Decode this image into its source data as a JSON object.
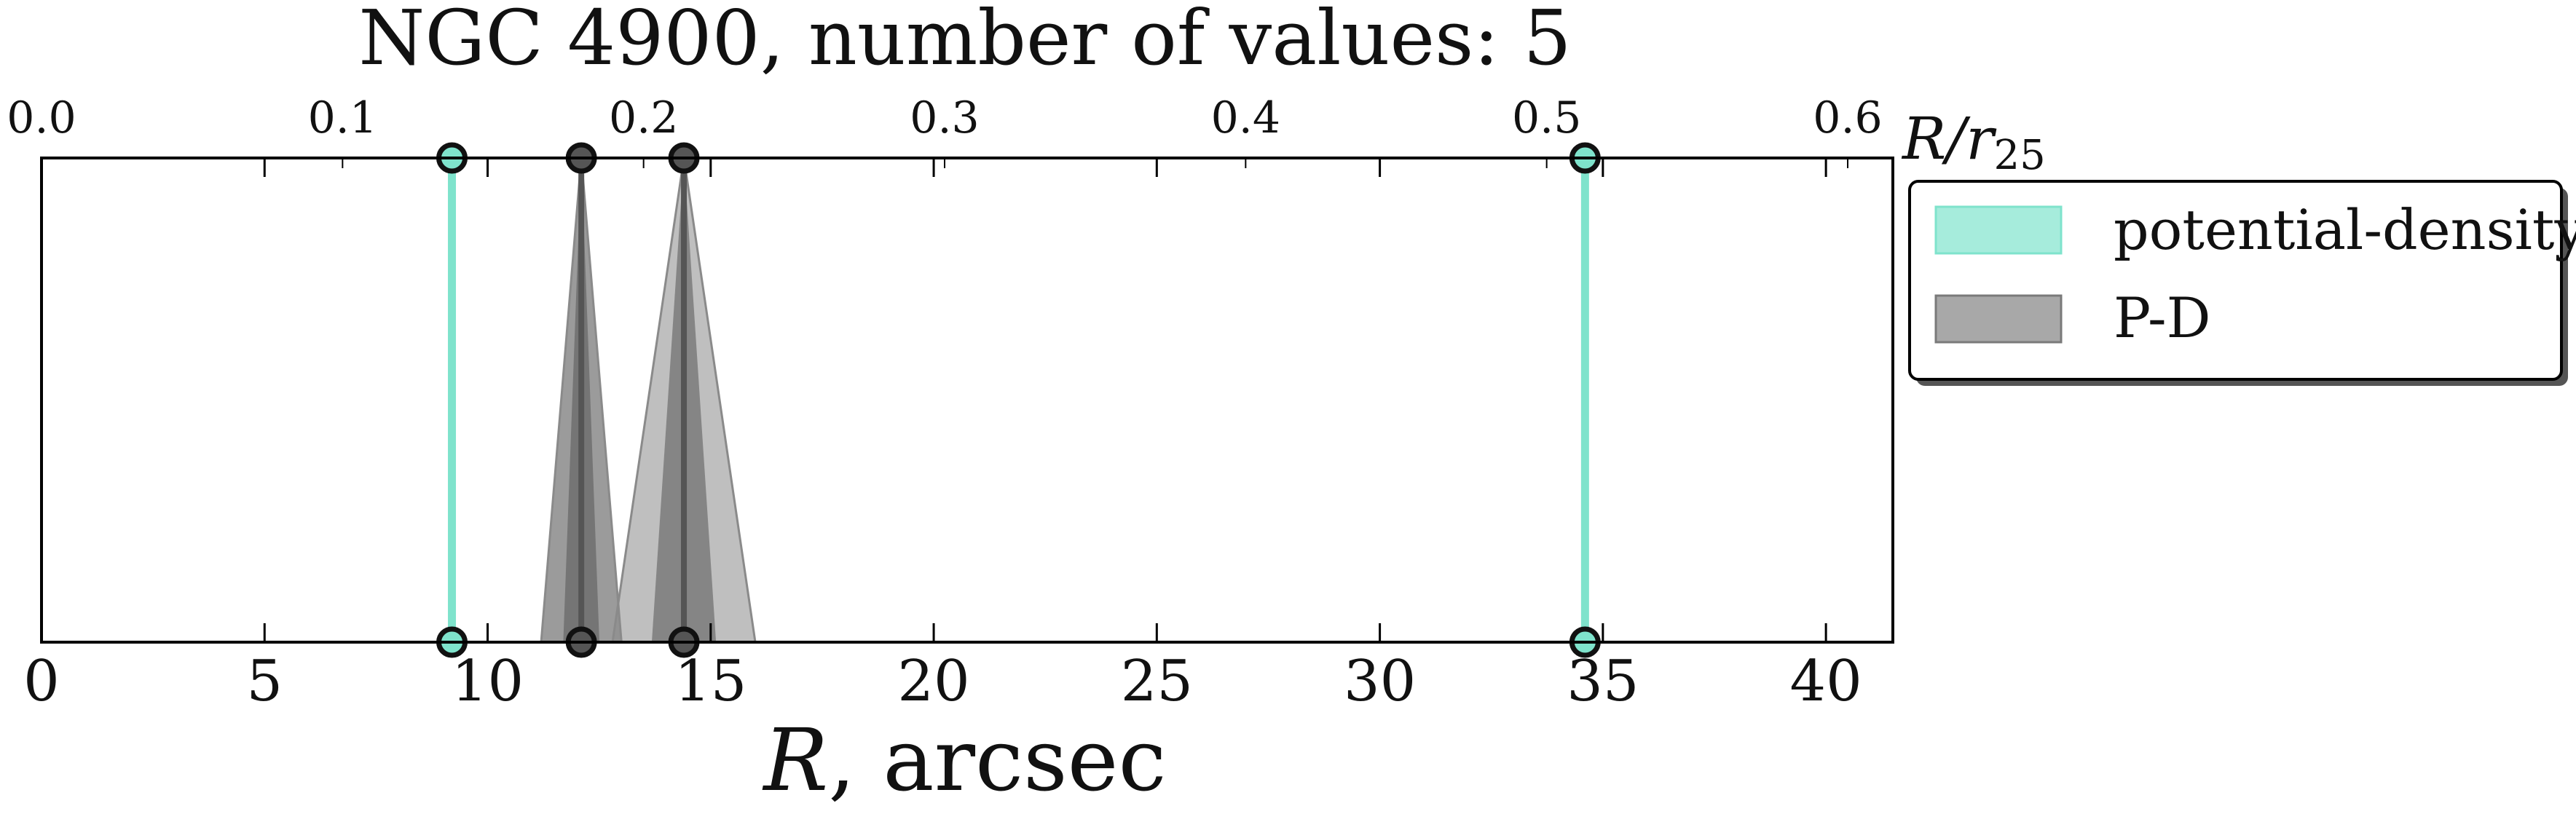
{
  "chart_data": {
    "type": "line",
    "title": "NGC 4900, number of values: 5",
    "xlabel": "R, arcsec",
    "xlabel_italic_part": "R",
    "xlabel_rest": ", arcsec",
    "top_axis_label": "R/r25",
    "top_axis_label_main": "R/r",
    "top_axis_label_sub": "25",
    "xlim": [
      0,
      41.5
    ],
    "x_ticks": [
      "0",
      "5",
      "10",
      "15",
      "20",
      "25",
      "30",
      "35",
      "40"
    ],
    "x_tick_values": [
      0,
      5,
      10,
      15,
      20,
      25,
      30,
      35,
      40
    ],
    "top_xlim": [
      0.0,
      0.615
    ],
    "top_ticks": [
      "0.0",
      "0.1",
      "0.2",
      "0.3",
      "0.4",
      "0.5",
      "0.6"
    ],
    "top_tick_values": [
      0.0,
      0.1,
      0.2,
      0.3,
      0.4,
      0.5,
      0.6
    ],
    "legend_position": "outside-right",
    "series": [
      {
        "name": "potential-density",
        "color": "#7fe3cc",
        "points": [
          {
            "r": 9.2,
            "width": 0.0
          },
          {
            "r": 34.6,
            "width": 0.0
          }
        ]
      },
      {
        "name": "P-D",
        "color": "#8a8a8a",
        "points": [
          {
            "r": 12.1,
            "width": 0.9
          },
          {
            "r": 14.4,
            "width": 1.6
          }
        ]
      }
    ]
  },
  "legend": {
    "items": [
      {
        "label": "potential-density",
        "color": "#a6ecdc"
      },
      {
        "label": "P-D",
        "color": "#a8a8a8"
      }
    ]
  }
}
